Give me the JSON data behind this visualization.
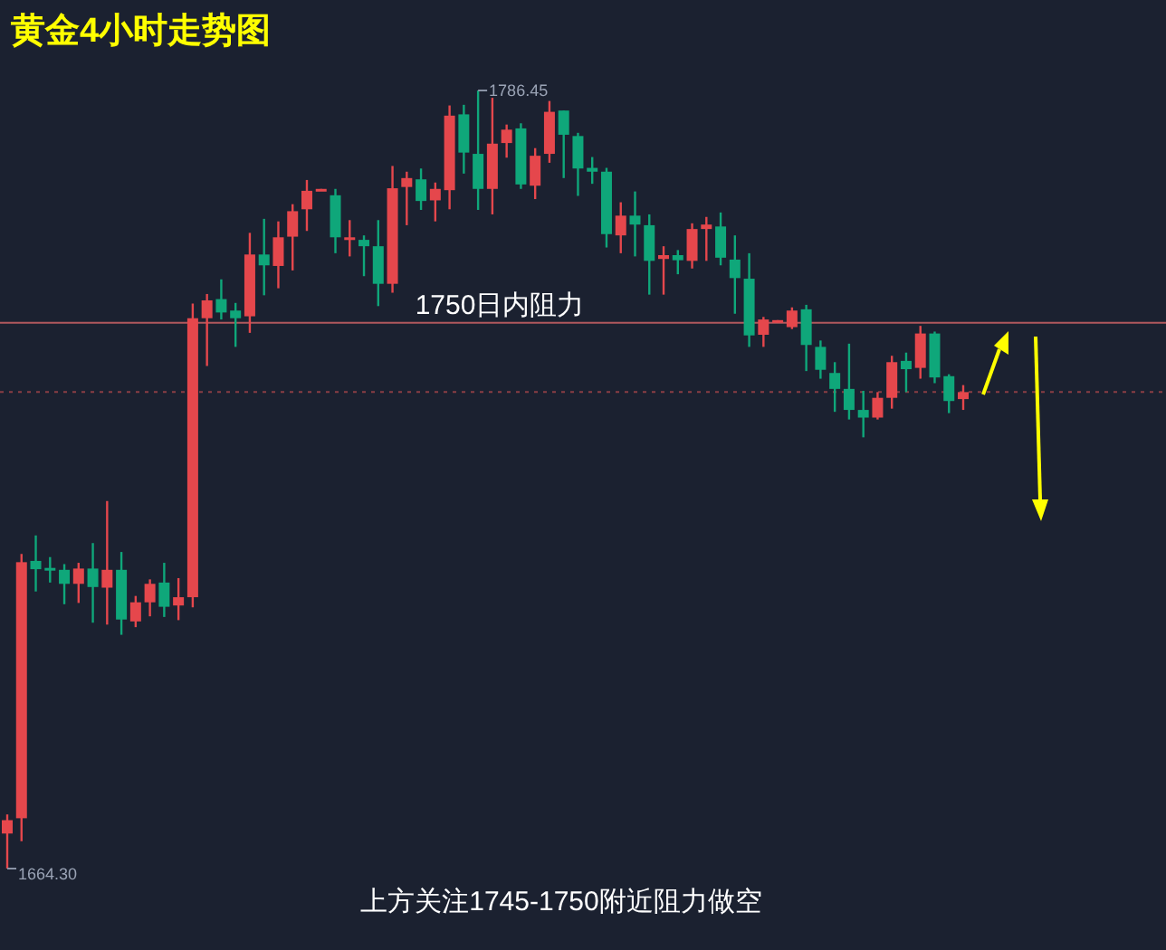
{
  "chart_data": {
    "type": "candlestick",
    "title": "黄金4小时走势图",
    "categories": [
      null,
      null,
      null,
      null,
      null,
      null,
      null,
      null,
      null,
      null,
      null,
      null,
      null,
      null,
      null,
      null,
      null,
      null,
      null,
      null,
      null,
      null,
      null,
      null,
      null,
      null,
      null,
      null,
      null,
      null,
      null,
      null,
      null,
      null,
      null,
      null,
      null,
      null,
      null,
      null,
      null,
      null,
      null,
      null,
      null,
      null,
      null,
      null,
      null,
      null,
      null,
      null,
      null,
      null,
      null,
      null,
      null,
      null,
      null,
      null,
      null,
      null,
      null,
      null,
      null,
      null,
      null,
      null
    ],
    "ohlc": [
      [
        1669.8,
        1672.8,
        1664.3,
        1671.9
      ],
      [
        1672.2,
        1713.7,
        1668.6,
        1712.4
      ],
      [
        1712.6,
        1716.6,
        1707.8,
        1711.3
      ],
      [
        1711.5,
        1713.2,
        1709.2,
        1711.2
      ],
      [
        1711.2,
        1712.1,
        1705.8,
        1709.0
      ],
      [
        1709.0,
        1712.3,
        1706.0,
        1711.4
      ],
      [
        1711.4,
        1715.4,
        1702.9,
        1708.5
      ],
      [
        1708.4,
        1722.0,
        1702.6,
        1711.2
      ],
      [
        1711.2,
        1714.0,
        1701.0,
        1703.4
      ],
      [
        1703.1,
        1707.1,
        1702.2,
        1706.1
      ],
      [
        1706.1,
        1709.7,
        1703.9,
        1709.0
      ],
      [
        1709.2,
        1712.3,
        1703.8,
        1705.4
      ],
      [
        1705.6,
        1709.9,
        1703.3,
        1706.9
      ],
      [
        1706.9,
        1753.0,
        1705.3,
        1750.7
      ],
      [
        1750.7,
        1754.5,
        1743.2,
        1753.5
      ],
      [
        1753.7,
        1756.8,
        1750.5,
        1751.6
      ],
      [
        1751.9,
        1753.1,
        1746.2,
        1750.7
      ],
      [
        1751.0,
        1764.1,
        1748.4,
        1760.7
      ],
      [
        1760.7,
        1766.3,
        1754.3,
        1759.0
      ],
      [
        1758.9,
        1765.9,
        1755.4,
        1763.4
      ],
      [
        1763.5,
        1768.6,
        1758.2,
        1767.5
      ],
      [
        1767.8,
        1772.4,
        1764.4,
        1770.7
      ],
      [
        1770.8,
        1771.0,
        1770.8,
        1771.0
      ],
      [
        1770.0,
        1771.0,
        1760.9,
        1763.4
      ],
      [
        1763.2,
        1766.1,
        1760.4,
        1763.4
      ],
      [
        1763.0,
        1763.7,
        1757.3,
        1762.0
      ],
      [
        1762.0,
        1766.1,
        1752.6,
        1756.1
      ],
      [
        1756.1,
        1774.6,
        1754.7,
        1771.1
      ],
      [
        1771.3,
        1773.7,
        1765.3,
        1772.7
      ],
      [
        1772.5,
        1774.2,
        1767.7,
        1769.1
      ],
      [
        1769.2,
        1772.0,
        1765.9,
        1771.0
      ],
      [
        1770.8,
        1784.1,
        1767.8,
        1782.5
      ],
      [
        1782.7,
        1784.2,
        1773.4,
        1776.7
      ],
      [
        1776.5,
        1786.45,
        1767.7,
        1771.0
      ],
      [
        1771.0,
        1785.3,
        1767.0,
        1778.1
      ],
      [
        1778.2,
        1781.1,
        1775.9,
        1780.3
      ],
      [
        1780.5,
        1781.3,
        1771.0,
        1771.7
      ],
      [
        1771.5,
        1777.4,
        1769.4,
        1776.2
      ],
      [
        1776.5,
        1784.8,
        1775.1,
        1783.1
      ],
      [
        1783.3,
        1783.3,
        1772.7,
        1779.5
      ],
      [
        1779.3,
        1779.8,
        1769.9,
        1774.2
      ],
      [
        1774.3,
        1776.0,
        1771.8,
        1773.7
      ],
      [
        1773.7,
        1774.3,
        1761.8,
        1763.9
      ],
      [
        1763.7,
        1768.9,
        1760.9,
        1766.8
      ],
      [
        1766.8,
        1770.6,
        1760.4,
        1765.4
      ],
      [
        1765.3,
        1767.0,
        1754.4,
        1759.7
      ],
      [
        1760.0,
        1762.0,
        1754.4,
        1760.6
      ],
      [
        1760.6,
        1761.4,
        1757.6,
        1759.8
      ],
      [
        1759.7,
        1765.6,
        1758.5,
        1764.7
      ],
      [
        1764.7,
        1766.6,
        1759.7,
        1765.4
      ],
      [
        1765.1,
        1767.3,
        1759.0,
        1760.2
      ],
      [
        1759.9,
        1763.7,
        1751.4,
        1757.0
      ],
      [
        1756.9,
        1760.9,
        1746.2,
        1748.0
      ],
      [
        1748.1,
        1750.9,
        1746.2,
        1750.5
      ],
      [
        1750.0,
        1750.4,
        1750.0,
        1750.4
      ],
      [
        1749.3,
        1752.4,
        1749.0,
        1751.9
      ],
      [
        1752.1,
        1752.8,
        1742.4,
        1746.5
      ],
      [
        1746.2,
        1747.2,
        1741.2,
        1742.6
      ],
      [
        1742.1,
        1743.8,
        1736.0,
        1739.6
      ],
      [
        1739.6,
        1746.7,
        1734.8,
        1736.3
      ],
      [
        1736.3,
        1739.3,
        1732.0,
        1735.1
      ],
      [
        1735.1,
        1739.1,
        1734.8,
        1738.2
      ],
      [
        1738.2,
        1744.8,
        1736.5,
        1743.8
      ],
      [
        1744.0,
        1745.3,
        1739.1,
        1742.7
      ],
      [
        1742.9,
        1749.5,
        1741.2,
        1748.3
      ],
      [
        1748.3,
        1748.6,
        1740.5,
        1741.4
      ],
      [
        1741.6,
        1741.9,
        1735.8,
        1737.7
      ],
      [
        1738.0,
        1740.2,
        1736.3,
        1739.1
      ]
    ],
    "colors": [
      "#e5474c",
      "#e5474c",
      "#0fa77a",
      "#0fa77a",
      "#0fa77a",
      "#e5474c",
      "#0fa77a",
      "#e5474c",
      "#0fa77a",
      "#e5474c",
      "#e5474c",
      "#0fa77a",
      "#e5474c",
      "#e5474c",
      "#e5474c",
      "#0fa77a",
      "#0fa77a",
      "#e5474c",
      "#0fa77a",
      "#e5474c",
      "#e5474c",
      "#e5474c",
      "#e5474c",
      "#0fa77a",
      "#e5474c",
      "#0fa77a",
      "#0fa77a",
      "#e5474c",
      "#e5474c",
      "#0fa77a",
      "#e5474c",
      "#e5474c",
      "#0fa77a",
      "#0fa77a",
      "#e5474c",
      "#e5474c",
      "#0fa77a",
      "#e5474c",
      "#e5474c",
      "#0fa77a",
      "#0fa77a",
      "#0fa77a",
      "#0fa77a",
      "#e5474c",
      "#0fa77a",
      "#0fa77a",
      "#e5474c",
      "#0fa77a",
      "#e5474c",
      "#e5474c",
      "#0fa77a",
      "#0fa77a",
      "#0fa77a",
      "#e5474c",
      "#e5474c",
      "#e5474c",
      "#0fa77a",
      "#0fa77a",
      "#0fa77a",
      "#0fa77a",
      "#0fa77a",
      "#e5474c",
      "#e5474c",
      "#0fa77a",
      "#e5474c",
      "#0fa77a",
      "#0fa77a",
      "#e5474c"
    ],
    "ref_lines": [
      {
        "axis": "y",
        "value": 1750,
        "label": "1750日内阻力",
        "color": "#b0585d",
        "line_style": "solid"
      },
      {
        "axis": "y",
        "value": 1739.1,
        "color": "#8a3e44",
        "line_style": "dotted"
      }
    ],
    "annotations": [
      "1786.45",
      "1664.30",
      "上方关注1745-1750附近阻力做空"
    ]
  }
}
